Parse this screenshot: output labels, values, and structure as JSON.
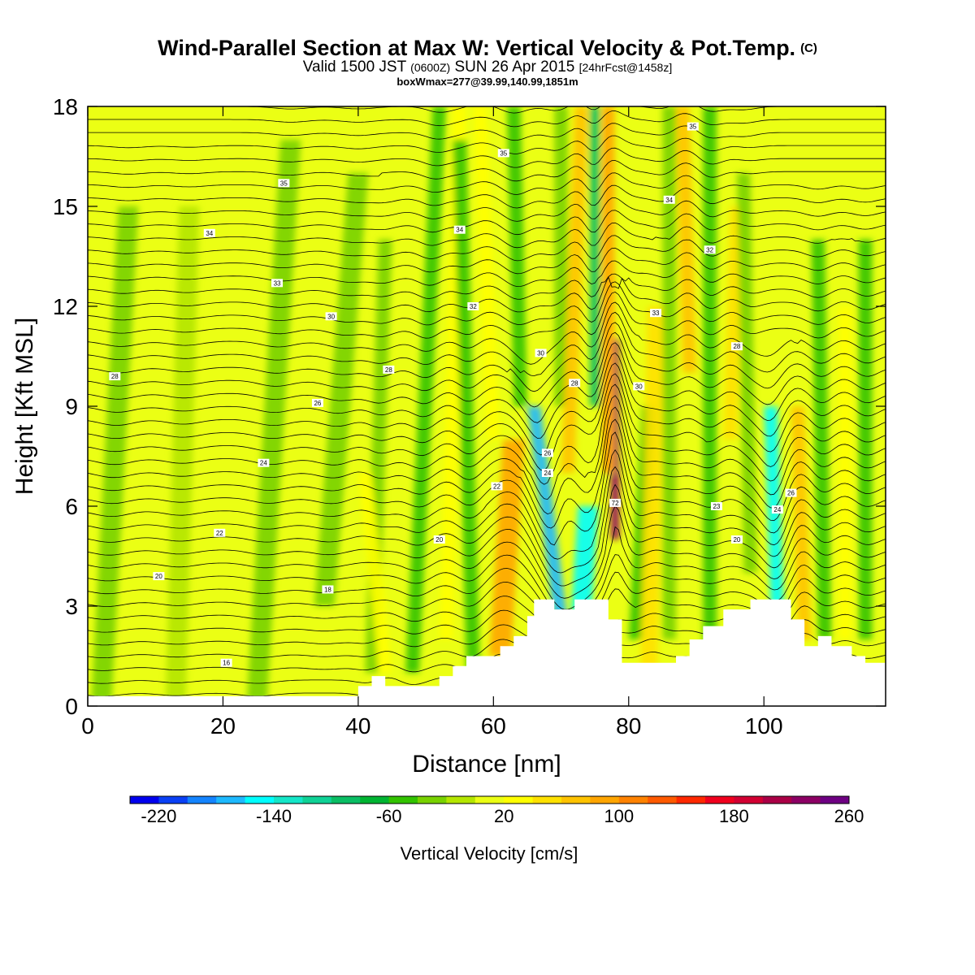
{
  "header": {
    "title": "Wind-Parallel Section at Max W: Vertical Velocity & Pot.Temp.",
    "title_mark": "(C)",
    "valid_prefix": "Valid 1500 JST",
    "valid_z": "(0600Z)",
    "valid_date": "SUN 26 Apr 2015",
    "forecast": "[24hrFcst@1458z]",
    "boxline": "boxWmax=277@39.99,140.99,1851m"
  },
  "chart_data": {
    "type": "heatmap",
    "xlabel": "Distance [nm]",
    "ylabel": "Height [Kft MSL]",
    "xlim": [
      0,
      118
    ],
    "ylim": [
      0,
      18
    ],
    "x_ticks": [
      "0",
      "20",
      "40",
      "60",
      "80",
      "100"
    ],
    "x_tick_values": [
      0,
      20,
      40,
      60,
      80,
      100
    ],
    "y_ticks": [
      "0",
      "3",
      "6",
      "9",
      "12",
      "15",
      "18"
    ],
    "y_tick_values": [
      0,
      3,
      6,
      9,
      12,
      15,
      18
    ],
    "background_w": 10,
    "w_features": [
      {
        "x": 2,
        "x_top": 6,
        "y0": 0,
        "y1": 15,
        "w": -25,
        "width": 3
      },
      {
        "x": 13,
        "x_top": 15,
        "y0": 0,
        "y1": 15,
        "w": -20,
        "width": 3
      },
      {
        "x": 25,
        "x_top": 30,
        "y0": 0,
        "y1": 17,
        "w": -25,
        "width": 3
      },
      {
        "x": 35,
        "x_top": 40,
        "y0": 3,
        "y1": 16,
        "w": -30,
        "width": 3
      },
      {
        "x": 42,
        "x_top": 44,
        "y0": 1,
        "y1": 14,
        "w": -40,
        "width": 2
      },
      {
        "x": 44,
        "x_top": 41,
        "y0": 1,
        "y1": 7,
        "w": 35,
        "width": 2
      },
      {
        "x": 48,
        "x_top": 52,
        "y0": 1,
        "y1": 18,
        "w": -45,
        "width": 2
      },
      {
        "x": 53,
        "x_top": 55,
        "y0": 2,
        "y1": 18,
        "w": 30,
        "width": 2
      },
      {
        "x": 57,
        "x_top": 55,
        "y0": 1,
        "y1": 17,
        "w": -50,
        "width": 2
      },
      {
        "x": 61,
        "x_top": 63,
        "y0": 1.5,
        "y1": 8,
        "w": 85,
        "width": 3.2
      },
      {
        "x": 60,
        "x_top": 58,
        "y0": 8,
        "y1": 18,
        "w": 20,
        "width": 2
      },
      {
        "x": 64,
        "x_top": 63,
        "y0": 9,
        "y1": 18,
        "w": -45,
        "width": 2
      },
      {
        "x": 70,
        "x_top": 66,
        "y0": 2.5,
        "y1": 9,
        "w": -180,
        "width": 2
      },
      {
        "x": 73,
        "x_top": 74,
        "y0": 2.8,
        "y1": 6,
        "w": -160,
        "width": 3
      },
      {
        "x": 70,
        "x_top": 70,
        "y0": 9,
        "y1": 18,
        "w": -40,
        "width": 2
      },
      {
        "x": 71,
        "x_top": 73,
        "y0": 7,
        "y1": 18,
        "w": 70,
        "width": 2
      },
      {
        "x": 75,
        "x_top": 75,
        "y0": 9,
        "y1": 18,
        "w": -100,
        "width": 1.5
      },
      {
        "x": 78,
        "x_top": 78,
        "y0": 5,
        "y1": 11,
        "w": 220,
        "width": 1.2
      },
      {
        "x": 77,
        "x_top": 77,
        "y0": 7,
        "y1": 18,
        "w": 90,
        "width": 1.8
      },
      {
        "x": 81,
        "x_top": 83,
        "y0": 2,
        "y1": 9,
        "w": -55,
        "width": 2
      },
      {
        "x": 83,
        "x_top": 84,
        "y0": 1,
        "y1": 12,
        "w": 45,
        "width": 2.5
      },
      {
        "x": 86,
        "x_top": 86,
        "y0": 2,
        "y1": 18,
        "w": -40,
        "width": 2
      },
      {
        "x": 89,
        "x_top": 88,
        "y0": 10,
        "y1": 18,
        "w": 60,
        "width": 2
      },
      {
        "x": 92,
        "x_top": 92,
        "y0": 1,
        "y1": 18,
        "w": -45,
        "width": 2
      },
      {
        "x": 95,
        "x_top": 96,
        "y0": 8,
        "y1": 15,
        "w": 40,
        "width": 2
      },
      {
        "x": 98,
        "x_top": 97,
        "y0": 4,
        "y1": 16,
        "w": -40,
        "width": 2
      },
      {
        "x": 102,
        "x_top": 101,
        "y0": 2.8,
        "y1": 9,
        "w": -150,
        "width": 2
      },
      {
        "x": 106,
        "x_top": 105,
        "y0": 2,
        "y1": 9,
        "w": 70,
        "width": 2
      },
      {
        "x": 109,
        "x_top": 108,
        "y0": 2,
        "y1": 14,
        "w": -50,
        "width": 2
      },
      {
        "x": 112,
        "x_top": 112,
        "y0": 2,
        "y1": 12,
        "w": 25,
        "width": 2
      },
      {
        "x": 115,
        "x_top": 115,
        "y0": 2,
        "y1": 14,
        "w": -45,
        "width": 2
      }
    ],
    "terrain": [
      [
        0,
        0.3
      ],
      [
        40,
        0.3
      ],
      [
        40,
        0.6
      ],
      [
        42,
        0.6
      ],
      [
        42,
        0.9
      ],
      [
        44,
        0.9
      ],
      [
        44,
        0.6
      ],
      [
        52,
        0.6
      ],
      [
        52,
        0.9
      ],
      [
        54,
        0.9
      ],
      [
        54,
        1.2
      ],
      [
        56,
        1.2
      ],
      [
        56,
        1.5
      ],
      [
        61,
        1.5
      ],
      [
        61,
        1.8
      ],
      [
        63,
        1.8
      ],
      [
        63,
        2.1
      ],
      [
        65,
        2.1
      ],
      [
        65,
        2.7
      ],
      [
        66,
        2.7
      ],
      [
        66,
        3.2
      ],
      [
        69,
        3.2
      ],
      [
        69,
        2.9
      ],
      [
        72,
        2.9
      ],
      [
        72,
        3.2
      ],
      [
        77,
        3.2
      ],
      [
        77,
        2.6
      ],
      [
        79,
        2.6
      ],
      [
        79,
        1.3
      ],
      [
        87,
        1.3
      ],
      [
        87,
        1.5
      ],
      [
        89,
        1.5
      ],
      [
        89,
        2.0
      ],
      [
        91,
        2.0
      ],
      [
        91,
        2.4
      ],
      [
        94,
        2.4
      ],
      [
        94,
        2.9
      ],
      [
        98,
        2.9
      ],
      [
        98,
        3.2
      ],
      [
        104,
        3.2
      ],
      [
        104,
        2.6
      ],
      [
        106,
        2.6
      ],
      [
        106,
        1.8
      ],
      [
        108,
        1.8
      ],
      [
        108,
        2.1
      ],
      [
        110,
        2.1
      ],
      [
        110,
        1.8
      ],
      [
        113,
        1.8
      ],
      [
        113,
        1.5
      ],
      [
        115,
        1.5
      ],
      [
        115,
        1.3
      ],
      [
        118,
        1.3
      ]
    ],
    "theta_lines": {
      "base_deg_at_0kft": 14,
      "deg_per_kft": 1.15,
      "interval_deg": 0.45,
      "range_deg": [
        14,
        35
      ]
    },
    "contour_labels": [
      {
        "x": 4,
        "y": 9.9,
        "text": "28"
      },
      {
        "x": 10.5,
        "y": 3.9,
        "text": "20"
      },
      {
        "x": 18,
        "y": 14.2,
        "text": "34"
      },
      {
        "x": 19.5,
        "y": 5.2,
        "text": "22"
      },
      {
        "x": 20.5,
        "y": 1.3,
        "text": "16"
      },
      {
        "x": 26,
        "y": 7.3,
        "text": "24"
      },
      {
        "x": 28,
        "y": 12.7,
        "text": "33"
      },
      {
        "x": 29,
        "y": 15.7,
        "text": "35"
      },
      {
        "x": 34,
        "y": 9.1,
        "text": "26"
      },
      {
        "x": 35.5,
        "y": 3.5,
        "text": "18"
      },
      {
        "x": 36,
        "y": 11.7,
        "text": "30"
      },
      {
        "x": 44.5,
        "y": 10.1,
        "text": "28"
      },
      {
        "x": 52,
        "y": 5.0,
        "text": "20"
      },
      {
        "x": 55,
        "y": 14.3,
        "text": "34"
      },
      {
        "x": 57,
        "y": 12.0,
        "text": "32"
      },
      {
        "x": 60.5,
        "y": 6.6,
        "text": "22"
      },
      {
        "x": 61.5,
        "y": 16.6,
        "text": "35"
      },
      {
        "x": 67,
        "y": 10.6,
        "text": "30"
      },
      {
        "x": 68,
        "y": 7.6,
        "text": "26"
      },
      {
        "x": 68,
        "y": 7.0,
        "text": "24"
      },
      {
        "x": 72,
        "y": 9.7,
        "text": "28"
      },
      {
        "x": 78,
        "y": 6.1,
        "text": "72"
      },
      {
        "x": 81.5,
        "y": 9.6,
        "text": "30"
      },
      {
        "x": 84,
        "y": 11.8,
        "text": "33"
      },
      {
        "x": 86,
        "y": 15.2,
        "text": "34"
      },
      {
        "x": 89.5,
        "y": 17.4,
        "text": "35"
      },
      {
        "x": 92,
        "y": 13.7,
        "text": "32"
      },
      {
        "x": 93,
        "y": 6.0,
        "text": "23"
      },
      {
        "x": 96,
        "y": 5.0,
        "text": "20"
      },
      {
        "x": 96,
        "y": 10.8,
        "text": "28"
      },
      {
        "x": 102,
        "y": 5.9,
        "text": "24"
      },
      {
        "x": 104,
        "y": 6.4,
        "text": "26"
      }
    ],
    "colorbar": {
      "label": "Vertical Velocity [cm/s]",
      "min": -240,
      "step": 20,
      "colors": [
        "#0000ee",
        "#0a40f5",
        "#1484ff",
        "#1eb9ff",
        "#00ffff",
        "#14e6c8",
        "#0fd296",
        "#0abe64",
        "#00b432",
        "#32c300",
        "#78d200",
        "#b4e600",
        "#ebff14",
        "#ffff00",
        "#ffe100",
        "#ffc300",
        "#ffa500",
        "#ff8200",
        "#ff5a00",
        "#ff2800",
        "#f0001e",
        "#d20032",
        "#aa0046",
        "#8c0064",
        "#6e0082"
      ],
      "tick_labels": [
        "-220",
        "-140",
        "-60",
        "20",
        "100",
        "180",
        "260"
      ],
      "tick_values": [
        -220,
        -140,
        -60,
        20,
        100,
        180,
        260
      ]
    }
  }
}
